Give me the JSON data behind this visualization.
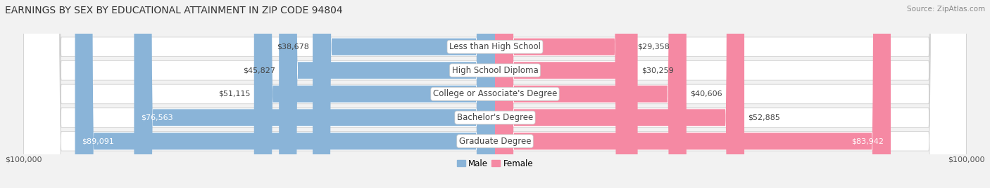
{
  "title": "EARNINGS BY SEX BY EDUCATIONAL ATTAINMENT IN ZIP CODE 94804",
  "source": "Source: ZipAtlas.com",
  "categories": [
    "Less than High School",
    "High School Diploma",
    "College or Associate's Degree",
    "Bachelor's Degree",
    "Graduate Degree"
  ],
  "male_values": [
    38678,
    45827,
    51115,
    76563,
    89091
  ],
  "female_values": [
    29358,
    30259,
    40606,
    52885,
    83942
  ],
  "max_value": 100000,
  "male_color": "#8ab4d8",
  "female_color": "#f589a3",
  "male_label": "Male",
  "female_label": "Female",
  "bg_color": "#f2f2f2",
  "row_bg_color": "#e4e4e8",
  "title_fontsize": 10,
  "label_fontsize": 8.5,
  "value_fontsize": 8,
  "tick_fontsize": 8,
  "source_fontsize": 7.5
}
